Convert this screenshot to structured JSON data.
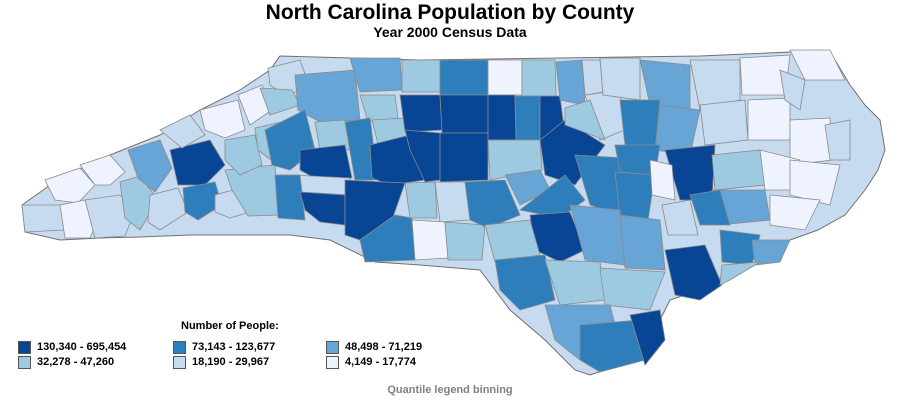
{
  "title": "North Carolina Population by County",
  "subtitle": "Year 2000 Census Data",
  "legend": {
    "title": "Number of People:",
    "bins": [
      {
        "label": "130,340 - 695,454",
        "color": "#084594"
      },
      {
        "label": "73,143 - 123,677",
        "color": "#2f7ebc"
      },
      {
        "label": "48,498 - 71,219",
        "color": "#66a5d5"
      },
      {
        "label": "32,278 - 47,260",
        "color": "#9ecae1"
      },
      {
        "label": "18,190 - 29,967",
        "color": "#c6dbef"
      },
      {
        "label": "4,149 - 17,774",
        "color": "#eff3ff"
      }
    ]
  },
  "footnote": "Quantile legend binning",
  "colors": {
    "county_border": "#8a8a8a",
    "state_border": "#707070"
  }
}
